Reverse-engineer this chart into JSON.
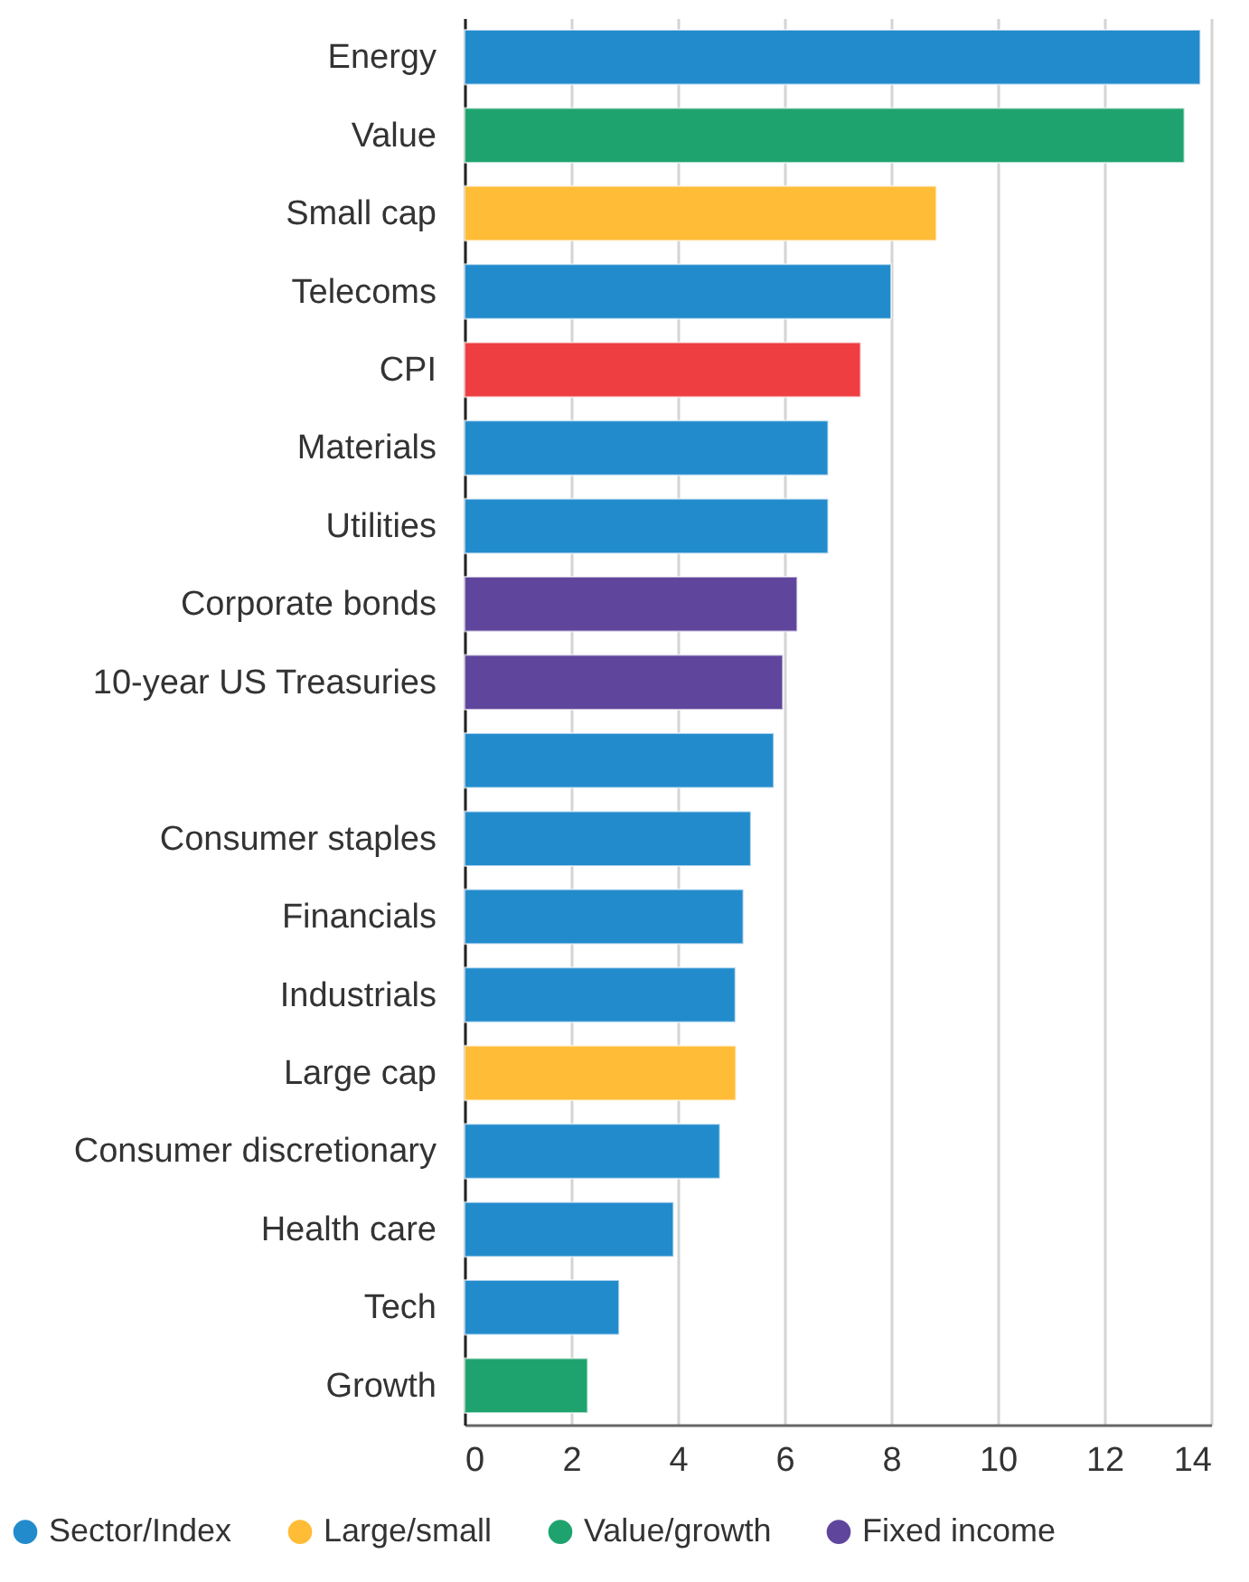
{
  "chart_data": {
    "type": "bar",
    "orientation": "horizontal",
    "categories": [
      "Energy",
      "Value",
      "Small cap",
      "Telecoms",
      "CPI",
      "Materials",
      "Utilities",
      "Corporate bonds",
      "10-year US Treasuries",
      null,
      "Consumer staples",
      "Financials",
      "Industrials",
      "Large cap",
      "Consumer discretionary",
      "Health care",
      "Tech",
      "Growth"
    ],
    "series": [
      {
        "name": "Sector/Index",
        "color": "#228bcc",
        "values": [
          13.8,
          null,
          null,
          8.0,
          null,
          6.82,
          6.82,
          null,
          null,
          5.8,
          5.37,
          5.23,
          5.08,
          null,
          4.79,
          3.92,
          2.9,
          null
        ]
      },
      {
        "name": "Large/small",
        "color": "#ffbc37",
        "values": [
          null,
          null,
          8.85,
          null,
          null,
          null,
          null,
          null,
          null,
          null,
          null,
          null,
          null,
          5.09,
          null,
          null,
          null,
          null
        ]
      },
      {
        "name": "Value/growth",
        "color": "#1fa36e",
        "values": [
          null,
          13.5,
          null,
          null,
          null,
          null,
          null,
          null,
          null,
          null,
          null,
          null,
          null,
          null,
          null,
          null,
          null,
          2.31
        ]
      },
      {
        "name": "Fixed income",
        "color": "#5f469c",
        "values": [
          null,
          null,
          null,
          null,
          null,
          null,
          null,
          6.24,
          5.97,
          null,
          null,
          null,
          null,
          null,
          null,
          null,
          null,
          null
        ]
      },
      {
        "color": "#ee3e42",
        "values": [
          null,
          null,
          null,
          null,
          7.43,
          null,
          null,
          null,
          null,
          null,
          null,
          null,
          null,
          null,
          null,
          null,
          null,
          null
        ]
      }
    ],
    "xlim": [
      0,
      14
    ],
    "xticks": [
      0,
      2,
      4,
      6,
      8,
      10,
      12,
      14
    ],
    "grid": "x",
    "legend": "bottom"
  }
}
